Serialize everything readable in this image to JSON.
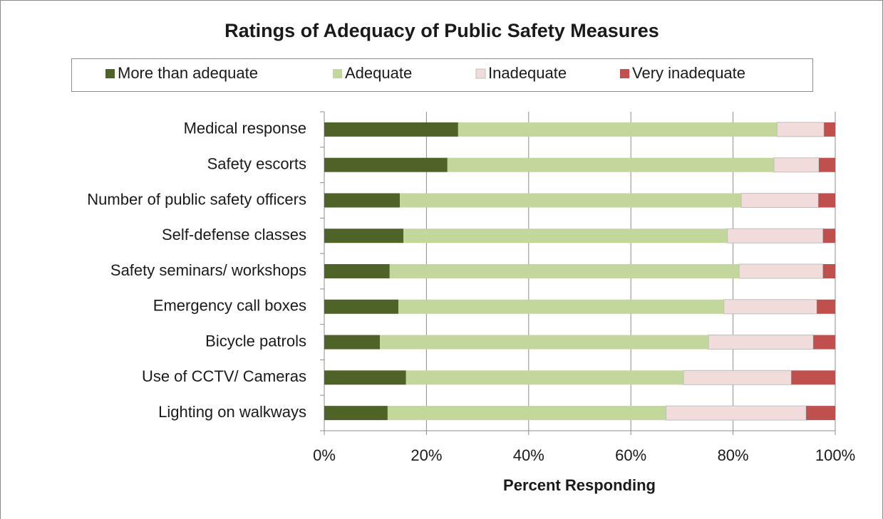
{
  "chart_data": {
    "type": "stacked_bar_horizontal",
    "title": "Ratings of Adequacy of Public Safety Measures",
    "x_label": "Percent Responding",
    "categories": [
      "Medical response",
      "Safety escorts",
      "Number of public safety officers",
      "Self-defense classes",
      "Safety seminars/ workshops",
      "Emergency call boxes",
      "Bicycle patrols",
      "Use of CCTV/ Cameras",
      "Lighting on walkways"
    ],
    "series": [
      {
        "name": "More than adequate",
        "color": "#4f6228",
        "values": [
          26.2,
          24.1,
          14.8,
          15.5,
          12.8,
          14.5,
          10.9,
          16.0,
          12.4
        ]
      },
      {
        "name": "Adequate",
        "color": "#c3d69b",
        "values": [
          62.4,
          63.9,
          66.8,
          63.4,
          68.4,
          63.7,
          64.3,
          54.3,
          54.5
        ]
      },
      {
        "name": "Inadequate",
        "color": "#f2dcdb",
        "values": [
          9.2,
          8.8,
          15.1,
          18.7,
          16.4,
          18.2,
          20.5,
          21.1,
          27.4
        ]
      },
      {
        "name": "Very inadequate",
        "color": "#c0504d",
        "values": [
          2.2,
          3.2,
          3.3,
          2.4,
          2.4,
          3.6,
          4.3,
          8.6,
          5.7
        ]
      }
    ],
    "xlim": [
      0,
      100
    ],
    "xticks": [
      {
        "value": 0,
        "label": "0%"
      },
      {
        "value": 20,
        "label": "20%"
      },
      {
        "value": 40,
        "label": "40%"
      },
      {
        "value": 60,
        "label": "60%"
      },
      {
        "value": 80,
        "label": "80%"
      },
      {
        "value": 100,
        "label": "100%"
      }
    ],
    "grid": true,
    "legend": "top"
  }
}
